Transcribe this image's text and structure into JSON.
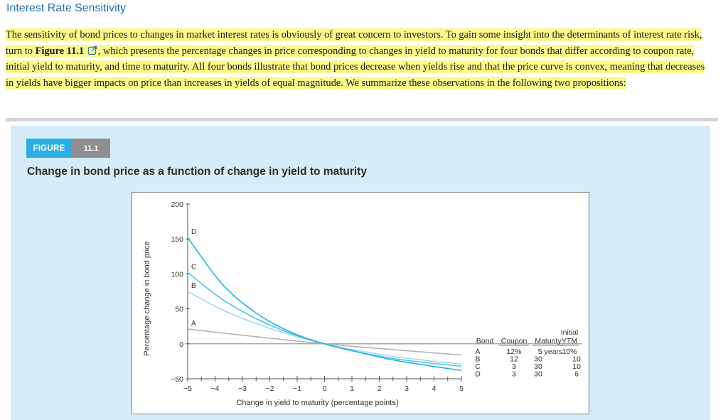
{
  "section": {
    "title": "Interest Rate Sensitivity"
  },
  "paragraph": {
    "part1": "The sensitivity of bond prices to changes in market interest rates is obviously of great concern to investors. To gain some insight into the determinants of interest rate risk, turn to ",
    "figure_ref": "Figure 11.1",
    "part2": ", which presents the percentage changes in price corresponding to changes in yield to maturity for four bonds that differ according to coupon rate, initial yield to maturity, and time to maturity. All four bonds illustrate that bond prices decrease when yields rise and that the price curve is convex, meaning that decreases in yields have bigger impacts on price than increases in yields of equal magnitude. We summarize these observations in the following two propositions:"
  },
  "figure": {
    "tag": "FIGURE",
    "number": "11.1",
    "title": "Change in bond price as a function of change in yield to maturity"
  },
  "colors": {
    "fig_tag": "#29aee6",
    "highlight": "#fbf98a",
    "link": "#1f6fb2",
    "figure_bg": "#d6ecf8"
  },
  "chart_data": {
    "type": "line",
    "xlabel": "Change in yield to maturity (percentage points)",
    "ylabel": "Percentage change in bond price",
    "xlim": [
      -5,
      5
    ],
    "ylim": [
      -50,
      200
    ],
    "x_ticks": [
      "−5",
      "−4",
      "−3",
      "−2",
      "−1",
      "0",
      "1",
      "2",
      "3",
      "4",
      "5"
    ],
    "y_ticks": [
      "200",
      "150",
      "100",
      "50",
      "0",
      "−50"
    ],
    "series": [
      {
        "name": "A",
        "color": "#b3b3b3",
        "x": [
          -5,
          0,
          5
        ],
        "y": [
          21,
          0,
          -16
        ]
      },
      {
        "name": "B",
        "color": "#9fd9f1",
        "x": [
          -5,
          -3.75,
          -2.5,
          -1.25,
          0,
          1.25,
          2.5,
          3.75,
          5
        ],
        "y": [
          75,
          49,
          29,
          13,
          0,
          -10,
          -18,
          -24,
          -29
        ]
      },
      {
        "name": "C",
        "color": "#4cc3ec",
        "x": [
          -5,
          -3.75,
          -2.5,
          -1.25,
          0,
          1.25,
          2.5,
          3.75,
          5
        ],
        "y": [
          102,
          64,
          36,
          15,
          0,
          -12,
          -21,
          -27,
          -32
        ]
      },
      {
        "name": "D",
        "color": "#1fb1e4",
        "x": [
          -5,
          -3.75,
          -2.5,
          -1.25,
          0,
          1.25,
          2.5,
          3.75,
          5
        ],
        "y": [
          152,
          86,
          44,
          17,
          0,
          -12,
          -23,
          -31,
          -38
        ]
      }
    ],
    "curve_labels": [
      "D",
      "C",
      "B",
      "A"
    ],
    "legend": {
      "headers": [
        "Bond",
        "Coupon",
        "Maturity",
        "Initial",
        "YTM"
      ],
      "rows": [
        {
          "bond": "A",
          "coupon": "12%",
          "maturity": "5 years",
          "ytm": "10%"
        },
        {
          "bond": "B",
          "coupon": "12",
          "maturity": "30",
          "ytm": "10"
        },
        {
          "bond": "C",
          "coupon": "3",
          "maturity": "30",
          "ytm": "10"
        },
        {
          "bond": "D",
          "coupon": "3",
          "maturity": "30",
          "ytm": "6"
        }
      ]
    }
  }
}
